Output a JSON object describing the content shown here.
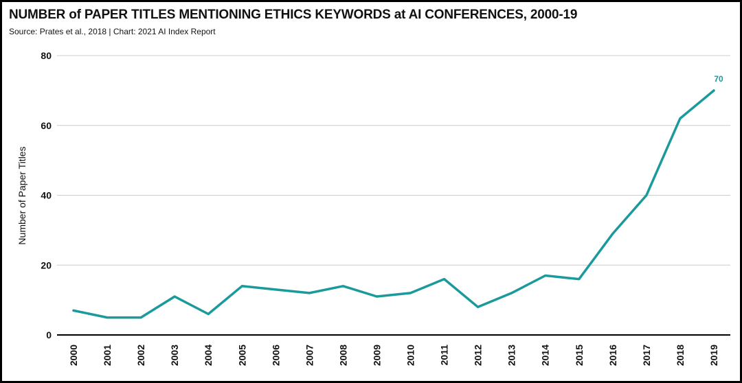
{
  "chart_data": {
    "type": "line",
    "title": "NUMBER of PAPER TITLES MENTIONING ETHICS KEYWORDS at AI CONFERENCES, 2000-19",
    "subtitle": "Source: Prates et al., 2018 | Chart: 2021 AI Index Report",
    "xlabel": "",
    "ylabel": "Number of Paper Titles",
    "categories": [
      "2000",
      "2001",
      "2002",
      "2003",
      "2004",
      "2005",
      "2006",
      "2007",
      "2008",
      "2009",
      "2010",
      "2011",
      "2012",
      "2013",
      "2014",
      "2015",
      "2016",
      "2017",
      "2018",
      "2019"
    ],
    "series": [
      {
        "values": [
          7,
          5,
          5,
          11,
          6,
          14,
          13,
          12,
          14,
          11,
          12,
          16,
          8,
          12,
          17,
          16,
          29,
          40,
          62,
          70
        ],
        "color": "#1a9a9a"
      }
    ],
    "yticks": [
      0,
      20,
      40,
      60,
      80
    ],
    "ylim": [
      0,
      80
    ],
    "data_labels": [
      {
        "index": 19,
        "text": "70"
      }
    ],
    "grid": true,
    "legend": "none",
    "colors": {
      "grid": "#cccccc",
      "axis": "#000000",
      "text": "#111111",
      "line": "#1a9a9a"
    }
  }
}
